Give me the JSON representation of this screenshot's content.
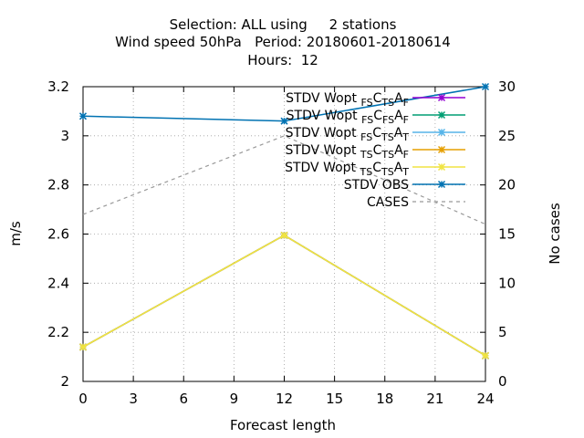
{
  "chart_data": {
    "type": "line",
    "title_lines": [
      "Selection: ALL using     2 stations",
      "Wind speed 50hPa   Period: 20180601-20180614",
      "Hours:  12"
    ],
    "xlabel": "Forecast length",
    "ylabel": "m/s",
    "y2label": "No cases",
    "xlim": [
      0,
      24
    ],
    "ylim": [
      2.0,
      3.2
    ],
    "y2lim": [
      0,
      30
    ],
    "xticks": [
      "0",
      "3",
      "6",
      "9",
      "12",
      "15",
      "18",
      "21",
      "24"
    ],
    "yticks": [
      "2",
      "2.2",
      "2.4",
      "2.6",
      "2.8",
      "3",
      "3.2"
    ],
    "y2ticks": [
      "0",
      "5",
      "10",
      "15",
      "20",
      "25",
      "30"
    ],
    "grid": true,
    "legend_position": "top-right",
    "x": [
      0,
      12,
      24
    ],
    "series": [
      {
        "name_parts": [
          "STDV Wopt",
          "FS",
          "C",
          "TS",
          "A",
          "F"
        ],
        "color": "#9400d3",
        "axis": "left",
        "values": [
          2.14,
          2.595,
          2.105
        ]
      },
      {
        "name_parts": [
          "STDV Wopt",
          "FS",
          "C",
          "FS",
          "A",
          "F"
        ],
        "color": "#009e73",
        "axis": "left",
        "values": [
          2.14,
          2.595,
          2.105
        ]
      },
      {
        "name_parts": [
          "STDV Wopt",
          "FS",
          "C",
          "TS",
          "A",
          "T"
        ],
        "color": "#56b4e9",
        "axis": "left",
        "values": [
          2.14,
          2.595,
          2.105
        ]
      },
      {
        "name_parts": [
          "STDV Wopt",
          "TS",
          "C",
          "TS",
          "A",
          "F"
        ],
        "color": "#e69f00",
        "axis": "left",
        "values": [
          2.14,
          2.595,
          2.105
        ]
      },
      {
        "name_parts": [
          "STDV Wopt",
          "TS",
          "C",
          "TS",
          "A",
          "T"
        ],
        "color": "#f0e442",
        "axis": "left",
        "values": [
          2.14,
          2.595,
          2.105
        ]
      },
      {
        "name": "STDV OBS",
        "color": "#0072b2",
        "axis": "left",
        "values": [
          3.08,
          3.06,
          3.2
        ]
      },
      {
        "name": "CASES",
        "color": "#999999",
        "axis": "right",
        "dashed": true,
        "values": [
          17,
          25,
          16
        ]
      }
    ]
  }
}
